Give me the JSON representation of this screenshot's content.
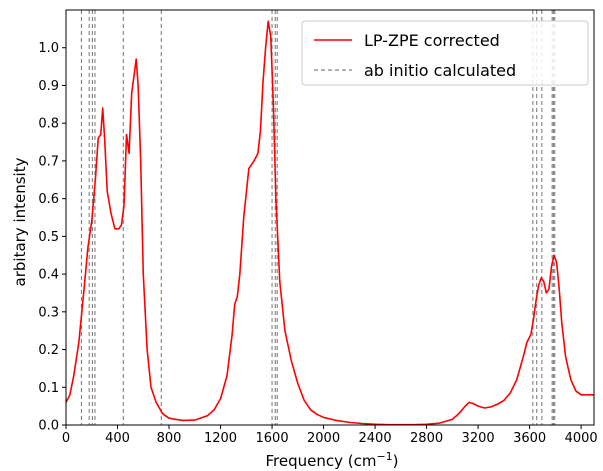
{
  "chart_data": {
    "type": "line",
    "title": "",
    "xlabel": "Frequency (cm",
    "xlabel_sup": "−1",
    "xlabel_close": ")",
    "ylabel": "arbitary intensity",
    "xlim": [
      0,
      4100
    ],
    "ylim": [
      0,
      1.1
    ],
    "xticks": [
      0,
      400,
      800,
      1200,
      1600,
      2000,
      2400,
      2800,
      3200,
      3600,
      4000
    ],
    "yticks": [
      0.0,
      0.1,
      0.2,
      0.3,
      0.4,
      0.5,
      0.6,
      0.7,
      0.8,
      0.9,
      1.0
    ],
    "ytick_labels": [
      "0.0",
      "0.1",
      "0.2",
      "0.3",
      "0.4",
      "0.5",
      "0.6",
      "0.7",
      "0.8",
      "0.9",
      "1.0"
    ],
    "grid": false,
    "legend_position": "top-right",
    "colors": {
      "curve": "#ff0000",
      "vlines": "#808080"
    },
    "series": [
      {
        "name": "LP-ZPE corrected",
        "style": "solid",
        "x": [
          0,
          30,
          60,
          100,
          140,
          170,
          200,
          230,
          250,
          270,
          285,
          300,
          320,
          350,
          380,
          410,
          430,
          450,
          470,
          490,
          510,
          530,
          545,
          560,
          580,
          600,
          630,
          660,
          700,
          750,
          800,
          900,
          1000,
          1100,
          1150,
          1200,
          1250,
          1290,
          1310,
          1330,
          1350,
          1380,
          1420,
          1460,
          1490,
          1510,
          1530,
          1550,
          1570,
          1590,
          1610,
          1630,
          1660,
          1700,
          1750,
          1800,
          1850,
          1900,
          1950,
          2000,
          2100,
          2200,
          2300,
          2400,
          2500,
          2600,
          2700,
          2800,
          2900,
          3000,
          3050,
          3100,
          3130,
          3160,
          3200,
          3250,
          3300,
          3350,
          3400,
          3450,
          3500,
          3550,
          3580,
          3610,
          3630,
          3650,
          3670,
          3690,
          3710,
          3730,
          3750,
          3770,
          3790,
          3810,
          3830,
          3850,
          3880,
          3920,
          3960,
          4000,
          4050,
          4100
        ],
        "y": [
          0.06,
          0.08,
          0.13,
          0.22,
          0.36,
          0.47,
          0.54,
          0.66,
          0.76,
          0.77,
          0.84,
          0.76,
          0.62,
          0.56,
          0.52,
          0.52,
          0.53,
          0.58,
          0.77,
          0.72,
          0.88,
          0.93,
          0.97,
          0.9,
          0.7,
          0.4,
          0.2,
          0.1,
          0.06,
          0.03,
          0.018,
          0.012,
          0.013,
          0.025,
          0.04,
          0.07,
          0.13,
          0.24,
          0.32,
          0.34,
          0.4,
          0.55,
          0.68,
          0.7,
          0.72,
          0.78,
          0.91,
          1.0,
          1.07,
          1.03,
          0.85,
          0.6,
          0.38,
          0.25,
          0.17,
          0.11,
          0.065,
          0.04,
          0.028,
          0.02,
          0.012,
          0.007,
          0.004,
          0.002,
          0.001,
          0.001,
          0.001,
          0.002,
          0.005,
          0.015,
          0.03,
          0.05,
          0.06,
          0.057,
          0.05,
          0.045,
          0.048,
          0.055,
          0.065,
          0.085,
          0.12,
          0.18,
          0.22,
          0.24,
          0.28,
          0.33,
          0.37,
          0.39,
          0.38,
          0.35,
          0.36,
          0.42,
          0.45,
          0.43,
          0.36,
          0.27,
          0.18,
          0.12,
          0.09,
          0.08,
          0.08,
          0.08
        ]
      },
      {
        "name": "ab initio calculated",
        "style": "dashed",
        "vlines_x": [
          120,
          180,
          205,
          225,
          445,
          740,
          1600,
          1625,
          1640,
          3625,
          3655,
          3695,
          3775,
          3785,
          3795
        ]
      }
    ]
  }
}
